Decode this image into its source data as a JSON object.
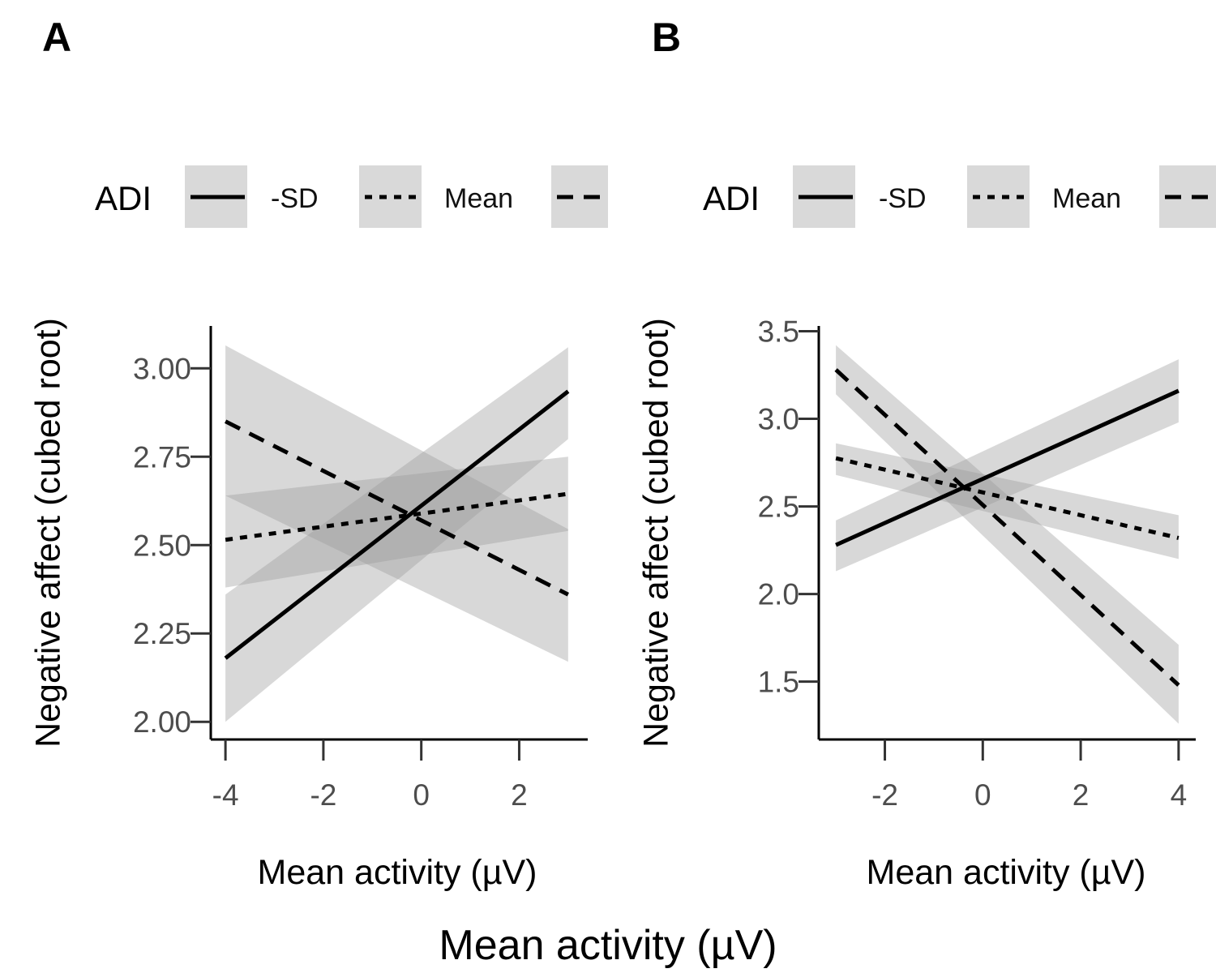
{
  "figure": {
    "shared_xlabel": "Mean activity (µV)"
  },
  "chart_data": [
    {
      "type": "line",
      "panel": "A",
      "title": "",
      "xlabel": "Mean activity (µV)",
      "ylabel": "Negative affect (cubed root)",
      "xlim": [
        -4.3,
        3.4
      ],
      "ylim": [
        1.95,
        3.12
      ],
      "xticks": [
        -4,
        -2,
        0,
        2
      ],
      "xtick_labels": [
        "-4",
        "-2",
        "0",
        "2"
      ],
      "yticks": [
        2.0,
        2.25,
        2.5,
        2.75,
        3.0
      ],
      "ytick_labels": [
        "2.00",
        "2.25",
        "2.50",
        "2.75",
        "3.00"
      ],
      "grid": false,
      "legend": {
        "title": "ADI",
        "position": "top",
        "entries": [
          {
            "label": "-SD",
            "style": "solid"
          },
          {
            "label": "Mean",
            "style": "dotted"
          },
          {
            "label": "",
            "style": "dashed"
          }
        ]
      },
      "series": [
        {
          "style": "solid",
          "x": [
            -4,
            3
          ],
          "y": [
            2.18,
            2.935
          ],
          "band_lower": [
            2.0,
            2.8
          ],
          "band_upper": [
            2.36,
            3.06
          ]
        },
        {
          "style": "dotted",
          "x": [
            -4,
            3
          ],
          "y": [
            2.515,
            2.645
          ],
          "band_lower": [
            2.38,
            2.54
          ],
          "band_upper": [
            2.64,
            2.75
          ]
        },
        {
          "style": "dashed",
          "x": [
            -4,
            3
          ],
          "y": [
            2.85,
            2.36
          ],
          "band_lower": [
            2.64,
            2.17
          ],
          "band_upper": [
            3.065,
            2.545
          ]
        }
      ]
    },
    {
      "type": "line",
      "panel": "B",
      "title": "",
      "xlabel": "Mean activity (µV)",
      "ylabel": "Negative affect (cubed root)",
      "xlim": [
        -3.35,
        4.35
      ],
      "ylim": [
        1.17,
        3.53
      ],
      "xticks": [
        -2,
        0,
        2,
        4
      ],
      "xtick_labels": [
        "-2",
        "0",
        "2",
        "4"
      ],
      "yticks": [
        1.5,
        2.0,
        2.5,
        3.0,
        3.5
      ],
      "ytick_labels": [
        "1.5",
        "2.0",
        "2.5",
        "3.0",
        "3.5"
      ],
      "grid": false,
      "legend": {
        "title": "ADI",
        "position": "top",
        "entries": [
          {
            "label": "-SD",
            "style": "solid"
          },
          {
            "label": "Mean",
            "style": "dotted"
          },
          {
            "label": "",
            "style": "dashed"
          }
        ]
      },
      "series": [
        {
          "style": "solid",
          "x": [
            -3,
            4
          ],
          "y": [
            2.28,
            3.16
          ],
          "band_lower": [
            2.13,
            2.98
          ],
          "band_upper": [
            2.42,
            3.34
          ]
        },
        {
          "style": "dotted",
          "x": [
            -3,
            4
          ],
          "y": [
            2.775,
            2.32
          ],
          "band_lower": [
            2.68,
            2.2
          ],
          "band_upper": [
            2.86,
            2.45
          ]
        },
        {
          "style": "dashed",
          "x": [
            -3,
            4
          ],
          "y": [
            3.28,
            1.48
          ],
          "band_lower": [
            3.14,
            1.26
          ],
          "band_upper": [
            3.42,
            1.71
          ]
        }
      ]
    }
  ]
}
